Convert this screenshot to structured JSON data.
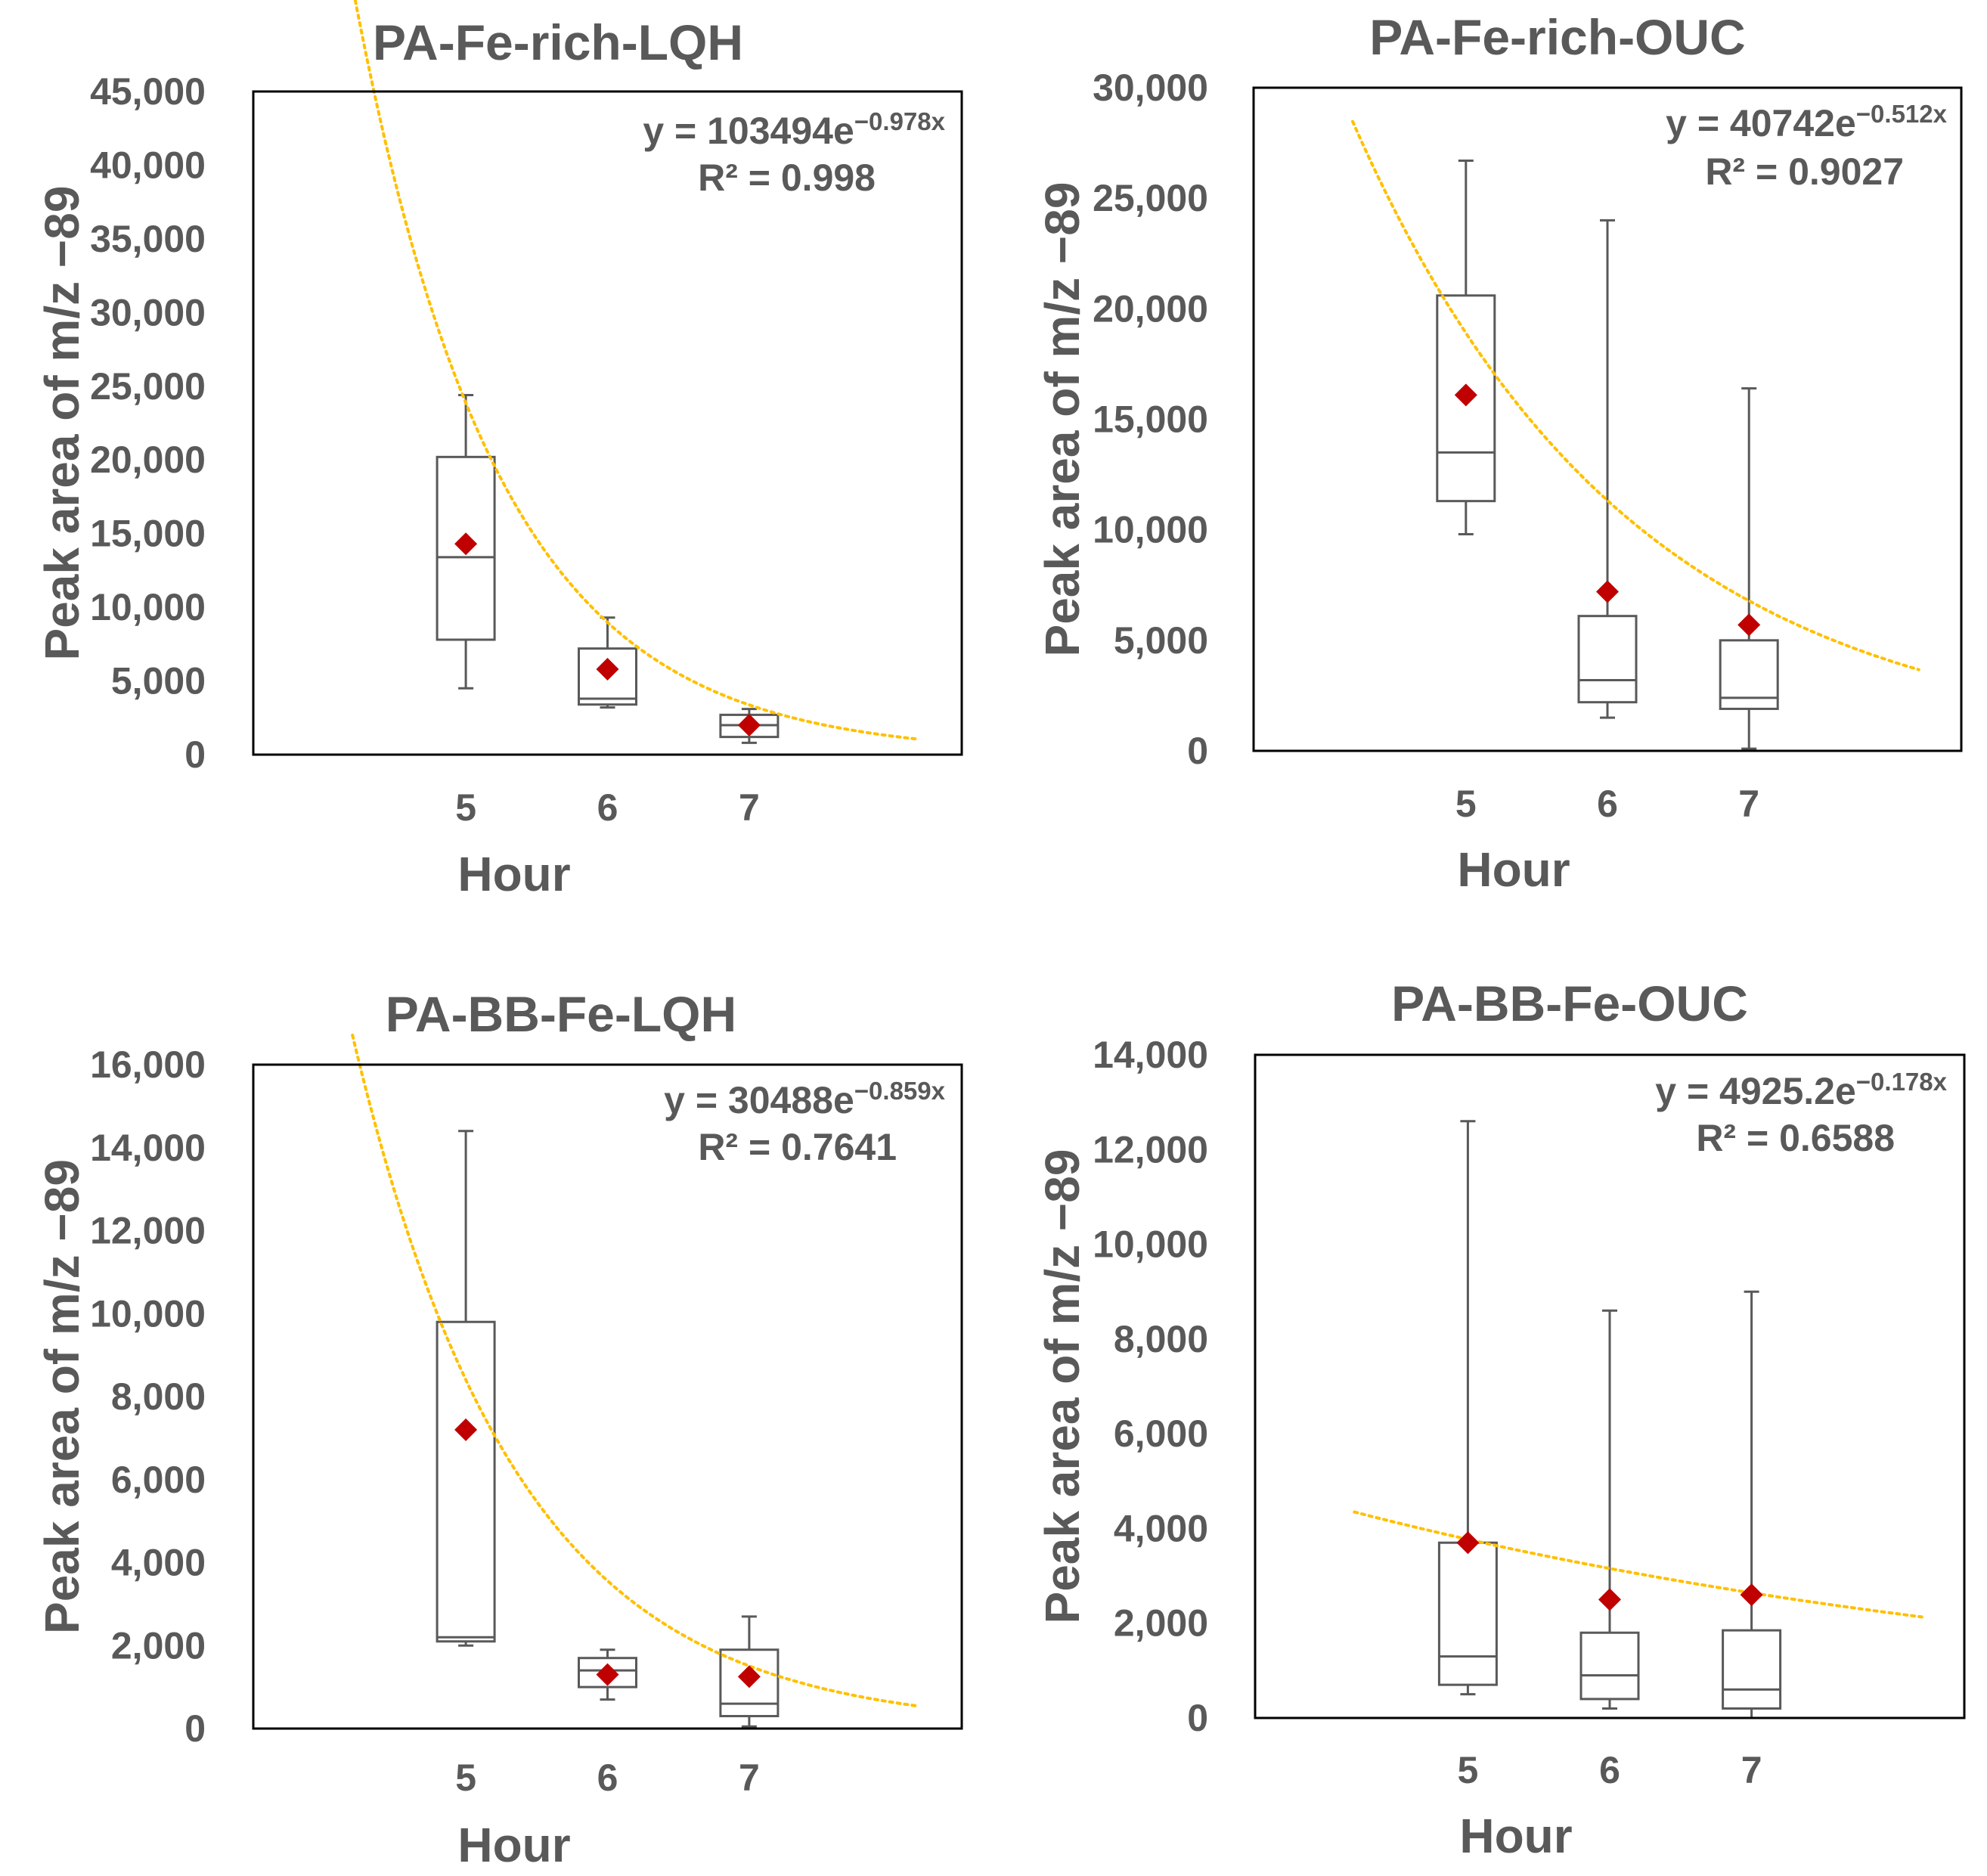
{
  "chart_data": [
    {
      "type": "box",
      "title": "PA-Fe-rich-LQH",
      "xlabel": "Hour",
      "ylabel": "Peak area of m/z −89",
      "categories": [
        "5",
        "6",
        "7"
      ],
      "x": [
        5,
        6,
        7
      ],
      "ylim": [
        0,
        45000
      ],
      "yticks": [
        0,
        5000,
        10000,
        15000,
        20000,
        25000,
        30000,
        35000,
        40000,
        45000
      ],
      "ytick_labels": [
        "0",
        "5,000",
        "10,000",
        "15,000",
        "20,000",
        "25,000",
        "30,000",
        "35,000",
        "40,000",
        "45,000"
      ],
      "boxes": [
        {
          "min": 4500,
          "q1": 7800,
          "median": 13400,
          "q3": 20200,
          "max": 24400,
          "mean": 14300
        },
        {
          "min": 3200,
          "q1": 3400,
          "median": 3800,
          "q3": 7200,
          "max": 9300,
          "mean": 5800
        },
        {
          "min": 800,
          "q1": 1200,
          "median": 2000,
          "q3": 2700,
          "max": 3100,
          "mean": 2000
        }
      ],
      "trendline": {
        "type": "exponential",
        "a": 103494,
        "b": -0.978,
        "x_range": [
          4.2,
          8.2
        ],
        "equation_base": "y = 103494e",
        "equation_exp": "−0.978x",
        "r2_label": "R² = 0.998"
      }
    },
    {
      "type": "box",
      "title": "PA-Fe-rich-OUC",
      "xlabel": "Hour",
      "ylabel": "Peak area of m/z −89",
      "categories": [
        "5",
        "6",
        "7"
      ],
      "x": [
        5,
        6,
        7
      ],
      "ylim": [
        0,
        30000
      ],
      "yticks": [
        0,
        5000,
        10000,
        15000,
        20000,
        25000,
        30000
      ],
      "ytick_labels": [
        "0",
        "5,000",
        "10,000",
        "15,000",
        "20,000",
        "25,000",
        "30,000"
      ],
      "boxes": [
        {
          "min": 9800,
          "q1": 11300,
          "median": 13500,
          "q3": 20600,
          "max": 26700,
          "mean": 16100
        },
        {
          "min": 1500,
          "q1": 2200,
          "median": 3200,
          "q3": 6100,
          "max": 24000,
          "mean": 7200
        },
        {
          "min": 100,
          "q1": 1900,
          "median": 2400,
          "q3": 5000,
          "max": 16400,
          "mean": 5700
        }
      ],
      "trendline": {
        "type": "exponential",
        "a": 40742,
        "b": -0.512,
        "x_range": [
          4.2,
          8.2
        ],
        "equation_base": "y = 40742e",
        "equation_exp": "−0.512x",
        "r2_label": "R² = 0.9027"
      }
    },
    {
      "type": "box",
      "title": "PA-BB-Fe-LQH",
      "xlabel": "Hour",
      "ylabel": "Peak area of m/z −89",
      "categories": [
        "5",
        "6",
        "7"
      ],
      "x": [
        5,
        6,
        7
      ],
      "ylim": [
        0,
        16000
      ],
      "yticks": [
        0,
        2000,
        4000,
        6000,
        8000,
        10000,
        12000,
        14000,
        16000
      ],
      "ytick_labels": [
        "0",
        "2,000",
        "4,000",
        "6,000",
        "8,000",
        "10,000",
        "12,000",
        "14,000",
        "16,000"
      ],
      "boxes": [
        {
          "min": 2000,
          "q1": 2100,
          "median": 2200,
          "q3": 9800,
          "max": 14400,
          "mean": 7200
        },
        {
          "min": 700,
          "q1": 1000,
          "median": 1400,
          "q3": 1700,
          "max": 1900,
          "mean": 1300
        },
        {
          "min": 50,
          "q1": 300,
          "median": 600,
          "q3": 1900,
          "max": 2700,
          "mean": 1250
        }
      ],
      "trendline": {
        "type": "exponential",
        "a": 30488,
        "b": -0.859,
        "x_range": [
          4.2,
          8.2
        ],
        "equation_base": "y = 30488e",
        "equation_exp": "−0.859x",
        "r2_label": "R² = 0.7641"
      }
    },
    {
      "type": "box",
      "title": "PA-BB-Fe-OUC",
      "xlabel": "Hour",
      "ylabel": "Peak area of m/z −89",
      "categories": [
        "5",
        "6",
        "7"
      ],
      "x": [
        5,
        6,
        7
      ],
      "ylim": [
        0,
        14000
      ],
      "yticks": [
        0,
        2000,
        4000,
        6000,
        8000,
        10000,
        12000,
        14000
      ],
      "ytick_labels": [
        "0",
        "2,000",
        "4,000",
        "6,000",
        "8,000",
        "10,000",
        "12,000",
        "14,000"
      ],
      "boxes": [
        {
          "min": 500,
          "q1": 700,
          "median": 1300,
          "q3": 3700,
          "max": 12600,
          "mean": 3700
        },
        {
          "min": 200,
          "q1": 400,
          "median": 900,
          "q3": 1800,
          "max": 8600,
          "mean": 2500
        },
        {
          "min": 0,
          "q1": 200,
          "median": 600,
          "q3": 1850,
          "max": 9000,
          "mean": 2600
        }
      ],
      "trendline": {
        "type": "exponential",
        "a": 4925.2,
        "b": -0.178,
        "x_range": [
          4.2,
          8.2
        ],
        "equation_base": "y = 4925.2e",
        "equation_exp": "−0.178x",
        "r2_label": "R² = 0.6588"
      }
    }
  ],
  "colors": {
    "text": "#595959",
    "axis": "#000000",
    "box": "#595959",
    "mean_marker": "#C00000",
    "trendline": "#FFC000"
  }
}
